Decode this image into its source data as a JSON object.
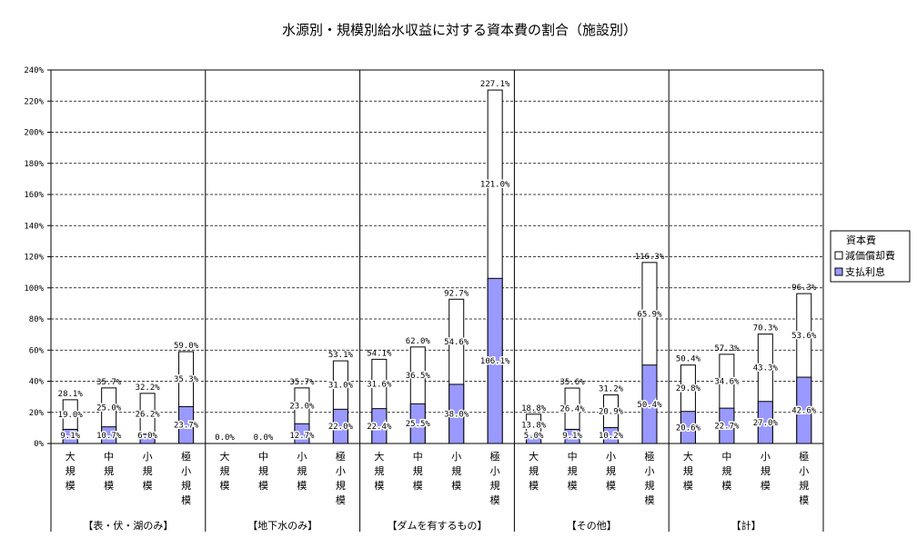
{
  "chart_data": {
    "type": "bar",
    "stacked": true,
    "title": "水源別・規模別給水収益に対する資本費の割合（施設別）",
    "ylim": [
      0,
      240
    ],
    "y_ticks": [
      "0%",
      "20%",
      "40%",
      "60%",
      "80%",
      "100%",
      "120%",
      "140%",
      "160%",
      "180%",
      "200%",
      "220%",
      "240%"
    ],
    "grid": "horizontal-dashed",
    "legend_title": "資本費",
    "legend_position": "right",
    "series": [
      {
        "name": "減価償却費",
        "color": "#ffffff"
      },
      {
        "name": "支払利息",
        "color": "#9999ff"
      }
    ],
    "groups": [
      {
        "label": "【表・伏・湖のみ】",
        "bars": [
          {
            "category": "大規模",
            "interest": 9.1,
            "depreciation": 19.0,
            "total": 28.1,
            "interest_label": "9.1%",
            "depreciation_label": "19.0%",
            "total_label": "28.1%"
          },
          {
            "category": "中規模",
            "interest": 10.7,
            "depreciation": 25.0,
            "total": 35.7,
            "interest_label": "10.7%",
            "depreciation_label": "25.0%",
            "total_label": "35.7%"
          },
          {
            "category": "小規模",
            "interest": 6.0,
            "depreciation": 26.2,
            "total": 32.2,
            "interest_label": "6.0%",
            "depreciation_label": "26.2%",
            "total_label": "32.2%"
          },
          {
            "category": "極小規模",
            "interest": 23.7,
            "depreciation": 35.3,
            "total": 59.0,
            "interest_label": "23.7%",
            "depreciation_label": "35.3%",
            "total_label": "59.0%"
          }
        ]
      },
      {
        "label": "【地下水のみ】",
        "bars": [
          {
            "category": "大規模",
            "interest": 0,
            "depreciation": 0,
            "total": 0,
            "interest_label": "",
            "depreciation_label": "",
            "total_label": "0.0%"
          },
          {
            "category": "中規模",
            "interest": 0,
            "depreciation": 0,
            "total": 0,
            "interest_label": "",
            "depreciation_label": "",
            "total_label": "0.0%"
          },
          {
            "category": "小規模",
            "interest": 12.7,
            "depreciation": 23.0,
            "total": 35.7,
            "interest_label": "12.7%",
            "depreciation_label": "23.0%",
            "total_label": "35.7%"
          },
          {
            "category": "極小規模",
            "interest": 22.0,
            "depreciation": 31.0,
            "total": 53.1,
            "interest_label": "22.0%",
            "depreciation_label": "31.0%",
            "total_label": "53.1%"
          }
        ]
      },
      {
        "label": "【ダムを有するもの】",
        "bars": [
          {
            "category": "大規模",
            "interest": 22.4,
            "depreciation": 31.6,
            "total": 54.1,
            "interest_label": "22.4%",
            "depreciation_label": "31.6%",
            "total_label": "54.1%"
          },
          {
            "category": "中規模",
            "interest": 25.5,
            "depreciation": 36.5,
            "total": 62.0,
            "interest_label": "25.5%",
            "depreciation_label": "36.5%",
            "total_label": "62.0%"
          },
          {
            "category": "小規模",
            "interest": 38.0,
            "depreciation": 54.6,
            "total": 92.7,
            "interest_label": "38.0%",
            "depreciation_label": "54.6%",
            "total_label": "92.7%"
          },
          {
            "category": "極小規模",
            "interest": 106.1,
            "depreciation": 121.0,
            "total": 227.1,
            "interest_label": "106.1%",
            "depreciation_label": "121.0%",
            "total_label": "227.1%"
          }
        ]
      },
      {
        "label": "【その他】",
        "bars": [
          {
            "category": "大規模",
            "interest": 5.0,
            "depreciation": 13.8,
            "total": 18.8,
            "interest_label": "5.0%",
            "depreciation_label": "13.8%",
            "total_label": "18.8%"
          },
          {
            "category": "中規模",
            "interest": 9.1,
            "depreciation": 26.4,
            "total": 35.6,
            "interest_label": "9.1%",
            "depreciation_label": "26.4%",
            "total_label": "35.6%"
          },
          {
            "category": "小規模",
            "interest": 10.2,
            "depreciation": 20.9,
            "total": 31.2,
            "interest_label": "10.2%",
            "depreciation_label": "20.9%",
            "total_label": "31.2%"
          },
          {
            "category": "極小規模",
            "interest": 50.4,
            "depreciation": 65.9,
            "total": 116.3,
            "interest_label": "50.4%",
            "depreciation_label": "65.9%",
            "total_label": "116.3%"
          }
        ]
      },
      {
        "label": "【計】",
        "bars": [
          {
            "category": "大規模",
            "interest": 20.6,
            "depreciation": 29.8,
            "total": 50.4,
            "interest_label": "20.6%",
            "depreciation_label": "29.8%",
            "total_label": "50.4%"
          },
          {
            "category": "中規模",
            "interest": 22.7,
            "depreciation": 34.6,
            "total": 57.3,
            "interest_label": "22.7%",
            "depreciation_label": "34.6%",
            "total_label": "57.3%"
          },
          {
            "category": "小規模",
            "interest": 27.0,
            "depreciation": 43.3,
            "total": 70.3,
            "interest_label": "27.0%",
            "depreciation_label": "43.3%",
            "total_label": "70.3%"
          },
          {
            "category": "極小規模",
            "interest": 42.6,
            "depreciation": 53.6,
            "total": 96.3,
            "interest_label": "42.6%",
            "depreciation_label": "53.6%",
            "total_label": "96.3%"
          }
        ]
      }
    ]
  }
}
